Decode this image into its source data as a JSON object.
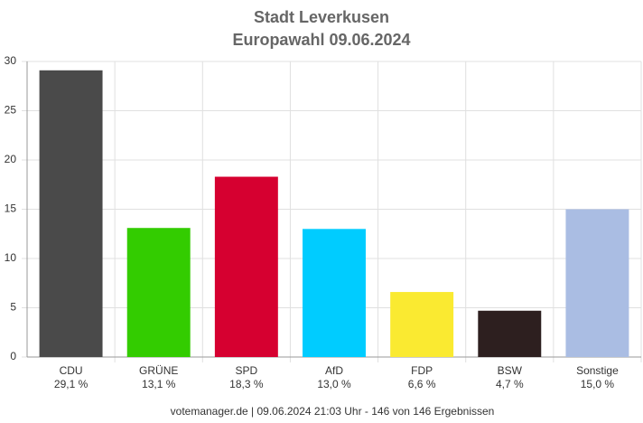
{
  "chart_data": {
    "type": "bar",
    "title": "Stadt Leverkusen",
    "subtitle": "Europawahl 09.06.2024",
    "categories": [
      "CDU",
      "GRÜNE",
      "SPD",
      "AfD",
      "FDP",
      "BSW",
      "Sonstige"
    ],
    "values": [
      29.1,
      13.1,
      18.3,
      13.0,
      6.6,
      4.7,
      15.0
    ],
    "value_labels": [
      "29,1 %",
      "13,1 %",
      "18,3 %",
      "13,0 %",
      "6,6 %",
      "4,7 %",
      "15,0 %"
    ],
    "colors": [
      "#4a4a4a",
      "#33cc00",
      "#d60030",
      "#00ccff",
      "#faea31",
      "#2d1f1f",
      "#aabde3"
    ],
    "ylim": [
      0,
      30
    ],
    "yticks": [
      0,
      5,
      10,
      15,
      20,
      25,
      30
    ],
    "grid": true,
    "footer": "votemanager.de | 09.06.2024 21:03 Uhr - 146 von 146 Ergebnissen"
  }
}
